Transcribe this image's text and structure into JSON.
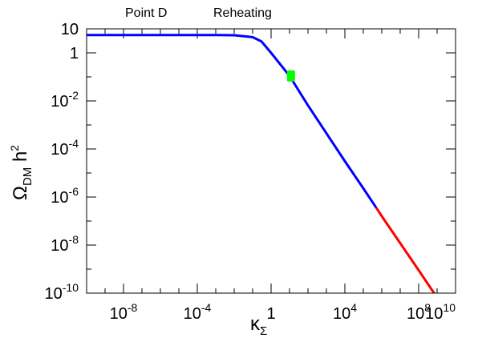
{
  "chart_data": {
    "type": "line",
    "annotations": [
      "Point D",
      "Reheating"
    ],
    "xlabel": {
      "main": "κ",
      "sub": "Σ"
    },
    "ylabel": {
      "main": "Ω",
      "sub": "DM",
      "suffix": " h",
      "sup": "2"
    },
    "xscale": "log",
    "yscale": "log",
    "xlim": [
      1e-10,
      10000000000.0
    ],
    "ylim": [
      1e-10,
      10
    ],
    "grid": false,
    "x_ticks": [
      {
        "value": 1e-08,
        "base": "10",
        "exp": "-8"
      },
      {
        "value": 0.0001,
        "base": "10",
        "exp": "-4"
      },
      {
        "value": 1,
        "base": "1",
        "exp": ""
      },
      {
        "value": 10000.0,
        "base": "10",
        "exp": "4"
      },
      {
        "value": 100000000.0,
        "base": "10",
        "exp": "8"
      },
      {
        "value": 10000000000.0,
        "base": "10",
        "exp": "10"
      }
    ],
    "y_ticks": [
      {
        "value": 10,
        "base": "10",
        "exp": ""
      },
      {
        "value": 1,
        "base": "1",
        "exp": ""
      },
      {
        "value": 0.01,
        "base": "10",
        "exp": "-2"
      },
      {
        "value": 0.0001,
        "base": "10",
        "exp": "-4"
      },
      {
        "value": 1e-06,
        "base": "10",
        "exp": "-6"
      },
      {
        "value": 1e-08,
        "base": "10",
        "exp": "-8"
      },
      {
        "value": 1e-10,
        "base": "10",
        "exp": "-10"
      }
    ],
    "series": [
      {
        "color": "#0000ff",
        "x": [
          1e-10,
          1e-06,
          0.001,
          0.01,
          0.1,
          0.3,
          1,
          3,
          10,
          100,
          1000,
          10000.0,
          100000.0,
          500000.0
        ],
        "y": [
          5.5,
          5.5,
          5.5,
          5.4,
          4.5,
          3.0,
          1.0,
          0.35,
          0.11,
          0.0065,
          0.00045,
          3.1e-05,
          2.3e-06,
          3.6e-07
        ]
      },
      {
        "color": "#ff0000",
        "x": [
          500000.0,
          1000000.0,
          10000000.0,
          100000000.0,
          1000000000.0,
          10000000000.0
        ],
        "y": [
          3.6e-07,
          1.6e-07,
          1.2e-08,
          9e-10,
          6.5e-11,
          4.5e-12
        ]
      }
    ],
    "marker": {
      "x": 12,
      "y": 0.11,
      "color": "#00ff00"
    }
  }
}
